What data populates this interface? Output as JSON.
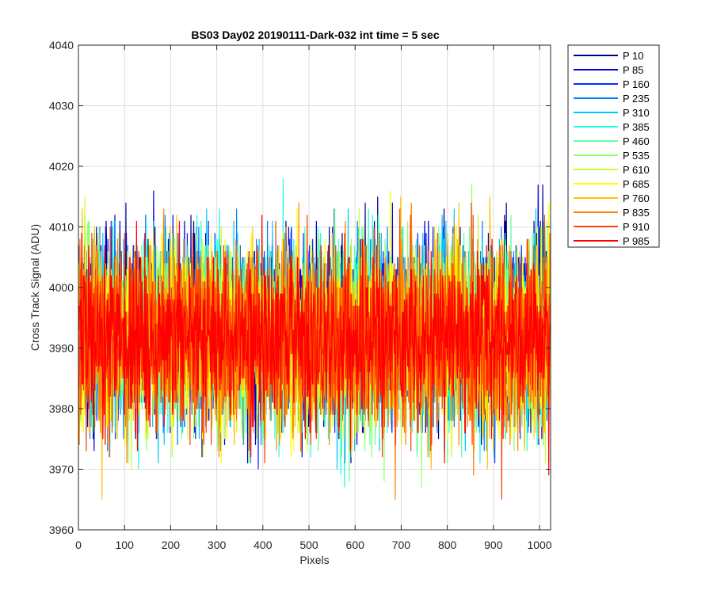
{
  "chart_data": {
    "type": "line",
    "title": "BS03 Day02 20190111-Dark-032 int time = 5 sec",
    "xlabel": "Pixels",
    "ylabel": "Cross Track Signal (ADU)",
    "xlim": [
      0,
      1024
    ],
    "ylim": [
      3960,
      4040
    ],
    "xticks": [
      "0",
      "100",
      "200",
      "300",
      "400",
      "500",
      "600",
      "700",
      "800",
      "900",
      "1000"
    ],
    "yticks": [
      "3960",
      "3970",
      "3980",
      "3990",
      "4000",
      "4010",
      "4020",
      "4030",
      "4040"
    ],
    "grid": true,
    "legend_position": "outside-top-right",
    "n_pixels": 1024,
    "series": [
      {
        "name": "P 10",
        "color": "#00008f",
        "mean": 3993.5,
        "spread": 7.5,
        "seed": 11
      },
      {
        "name": "P 85",
        "color": "#0000d9",
        "mean": 3993.0,
        "spread": 7.5,
        "seed": 23
      },
      {
        "name": "P 160",
        "color": "#0030ff",
        "mean": 3992.8,
        "spread": 7.5,
        "seed": 37
      },
      {
        "name": "P 235",
        "color": "#0080ff",
        "mean": 3992.6,
        "spread": 7.5,
        "seed": 41
      },
      {
        "name": "P 310",
        "color": "#00c8ff",
        "mean": 3992.4,
        "spread": 7.5,
        "seed": 53
      },
      {
        "name": "P 385",
        "color": "#20ffe0",
        "mean": 3992.3,
        "spread": 7.5,
        "seed": 67
      },
      {
        "name": "P 460",
        "color": "#60ffa0",
        "mean": 3992.1,
        "spread": 7.5,
        "seed": 71
      },
      {
        "name": "P 535",
        "color": "#90ff70",
        "mean": 3992.0,
        "spread": 7.5,
        "seed": 83
      },
      {
        "name": "P 610",
        "color": "#c8ff30",
        "mean": 3991.9,
        "spread": 7.5,
        "seed": 97
      },
      {
        "name": "P 685",
        "color": "#ffff00",
        "mean": 3991.8,
        "spread": 7.5,
        "seed": 101
      },
      {
        "name": "P 760",
        "color": "#ffc000",
        "mean": 3991.6,
        "spread": 7.5,
        "seed": 113
      },
      {
        "name": "P 835",
        "color": "#ff8000",
        "mean": 3991.5,
        "spread": 7.5,
        "seed": 127
      },
      {
        "name": "P 910",
        "color": "#ff4000",
        "mean": 3991.4,
        "spread": 7.5,
        "seed": 131
      },
      {
        "name": "P 985",
        "color": "#ff0000",
        "mean": 3991.2,
        "spread": 7.0,
        "seed": 149
      }
    ]
  }
}
